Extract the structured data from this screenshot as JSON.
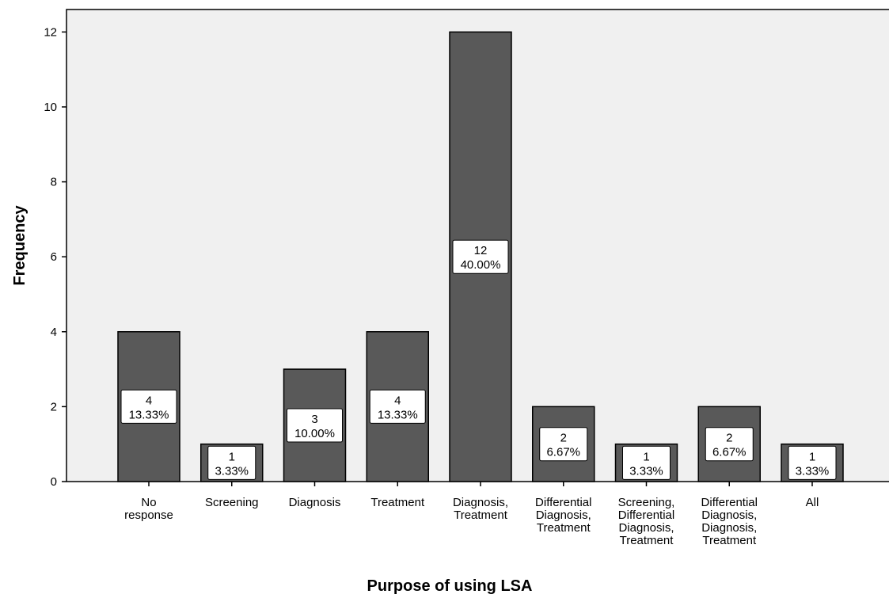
{
  "chart_data": {
    "type": "bar",
    "title": "",
    "xlabel": "Purpose of using LSA",
    "ylabel": "Frequency",
    "ylim": [
      0,
      12.6
    ],
    "yticks": [
      0,
      2,
      4,
      6,
      8,
      10,
      12
    ],
    "grid": false,
    "categories": [
      [
        "No",
        "response"
      ],
      [
        "Screening"
      ],
      [
        "Diagnosis"
      ],
      [
        "Treatment"
      ],
      [
        "Diagnosis,",
        "Treatment"
      ],
      [
        "Differential",
        "Diagnosis,",
        "Treatment"
      ],
      [
        "Screening,",
        "Differential",
        "Diagnosis,",
        "Treatment"
      ],
      [
        "Differential",
        "Diagnosis,",
        "Diagnosis,",
        "Treatment"
      ],
      [
        "All"
      ]
    ],
    "values": [
      4,
      1,
      3,
      4,
      12,
      2,
      1,
      2,
      1
    ],
    "data_labels": [
      [
        "4",
        "13.33%"
      ],
      [
        "1",
        "3.33%"
      ],
      [
        "3",
        "10.00%"
      ],
      [
        "4",
        "13.33%"
      ],
      [
        "12",
        "40.00%"
      ],
      [
        "2",
        "6.67%"
      ],
      [
        "1",
        "3.33%"
      ],
      [
        "2",
        "6.67%"
      ],
      [
        "1",
        "3.33%"
      ]
    ],
    "colors": {
      "plot_background": "#f0f0f0",
      "bar_fill": "#595959",
      "bar_stroke": "#000000"
    }
  }
}
